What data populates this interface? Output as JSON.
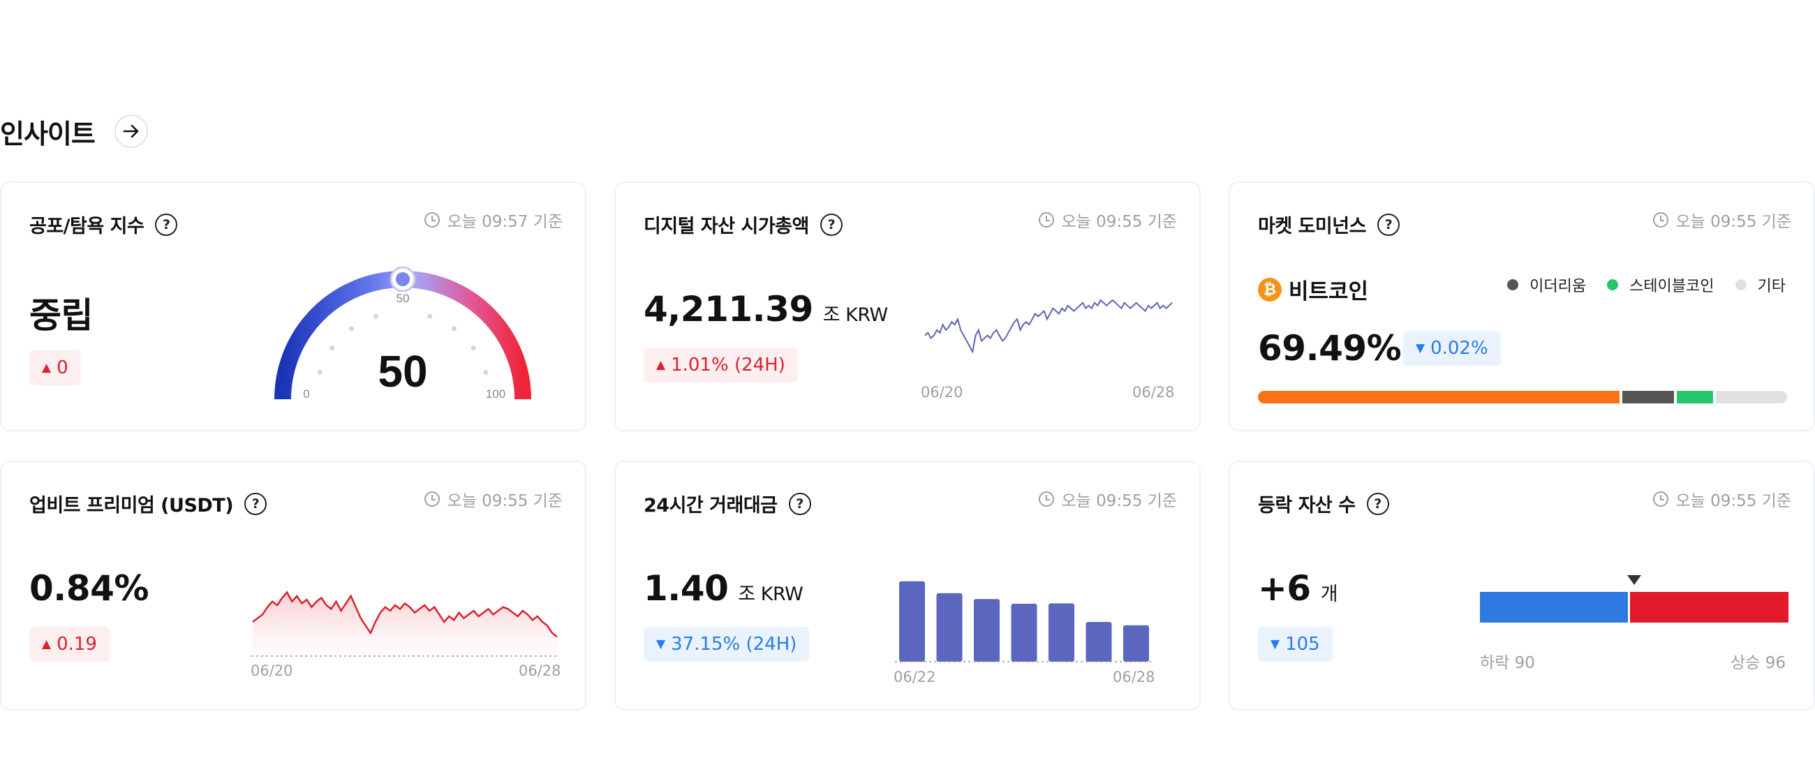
{
  "section": {
    "title": "인사이트",
    "arrow_icon": "arrow-right-icon"
  },
  "fear_greed": {
    "title": "공포/탐욕 지수",
    "timestamp": "오늘 09:57 기준",
    "status": "중립",
    "change": "0",
    "value": 50,
    "gauge_ticks": {
      "min": "0",
      "mid": "50",
      "max": "100"
    },
    "colors": {
      "low": "#1a34b8",
      "mid": "#a7a3f7",
      "high": "#ef2438"
    }
  },
  "market_cap": {
    "title": "디지털 자산 시가총액",
    "timestamp": "오늘 09:55 기준",
    "value": "4,211.39",
    "unit": "조 KRW",
    "change": "1.01% (24H)",
    "x_start": "06/20",
    "x_end": "06/28",
    "series": [
      62,
      63,
      61,
      62,
      64,
      63,
      66,
      64,
      65,
      67,
      66,
      68,
      64,
      62,
      60,
      58,
      56,
      62,
      64,
      60,
      61,
      62,
      61,
      63,
      64,
      62,
      60,
      61,
      63,
      65,
      67,
      68,
      64,
      66,
      67,
      66,
      68,
      70,
      69,
      70,
      71,
      68,
      70,
      72,
      71,
      70,
      72,
      71,
      73,
      72,
      71,
      72,
      73,
      74,
      72,
      73,
      72,
      74,
      73,
      75,
      74,
      73,
      74,
      75,
      74,
      73,
      72,
      74,
      73,
      72,
      73,
      74,
      73,
      72,
      71,
      73,
      72,
      73,
      74,
      72,
      73,
      72,
      73,
      74
    ],
    "color": "#5b66ad"
  },
  "dominance": {
    "title": "마켓 도미넌스",
    "timestamp": "오늘 09:55 기준",
    "coin_icon": "bitcoin-icon",
    "coin_name": "비트코인",
    "value": "69.49%",
    "change": "0.02%",
    "legend": [
      {
        "label": "이더리움",
        "color": "#555555"
      },
      {
        "label": "스테이블코인",
        "color": "#25c76a"
      },
      {
        "label": "기타",
        "color": "#e1e1e1"
      }
    ],
    "shares": [
      {
        "name": "비트코인",
        "pct": 69.49,
        "color": "#f97316"
      },
      {
        "name": "이더리움",
        "pct": 9.8,
        "color": "#555555"
      },
      {
        "name": "스테이블코인",
        "pct": 7.1,
        "color": "#25c76a"
      },
      {
        "name": "기타",
        "pct": 13.61,
        "color": "#e1e1e1"
      }
    ]
  },
  "premium": {
    "title": "업비트 프리미엄 (USDT)",
    "timestamp": "오늘 09:55 기준",
    "value": "0.84%",
    "change": "0.19",
    "x_start": "06/20",
    "x_end": "06/28",
    "series": [
      0.92,
      0.94,
      0.96,
      1.0,
      1.03,
      1.01,
      1.05,
      1.08,
      1.03,
      1.06,
      1.02,
      1.04,
      1.0,
      1.03,
      1.05,
      1.01,
      0.99,
      1.03,
      0.98,
      1.02,
      1.06,
      1.0,
      0.94,
      0.9,
      0.86,
      0.92,
      0.97,
      1.0,
      0.98,
      1.01,
      0.99,
      1.02,
      1.0,
      0.97,
      0.99,
      1.01,
      0.98,
      1.0,
      0.96,
      0.92,
      0.95,
      0.93,
      0.97,
      0.94,
      0.96,
      0.98,
      0.95,
      0.97,
      0.99,
      0.96,
      0.98,
      1.0,
      0.99,
      0.97,
      0.95,
      0.98,
      0.96,
      0.93,
      0.95,
      0.92,
      0.9,
      0.86,
      0.84
    ],
    "color": "#d8222f"
  },
  "volume": {
    "title": "24시간 거래대금",
    "timestamp": "오늘 09:55 기준",
    "value": "1.40",
    "unit": "조 KRW",
    "change": "37.15% (24H)",
    "x_start": "06/22",
    "x_end": "06/28",
    "bars": [
      2.21,
      1.88,
      1.72,
      1.59,
      1.6,
      1.09,
      1.0
    ],
    "color": "#5b66bf"
  },
  "advancers": {
    "title": "등락 자산 수",
    "timestamp": "오늘 09:55 기준",
    "value": "+6",
    "unit": "개",
    "change": "105",
    "down_label": "하락 90",
    "up_label": "상승 96",
    "down": 90,
    "up": 96,
    "down_color": "#2f7ae0",
    "up_color": "#e11a2b"
  }
}
